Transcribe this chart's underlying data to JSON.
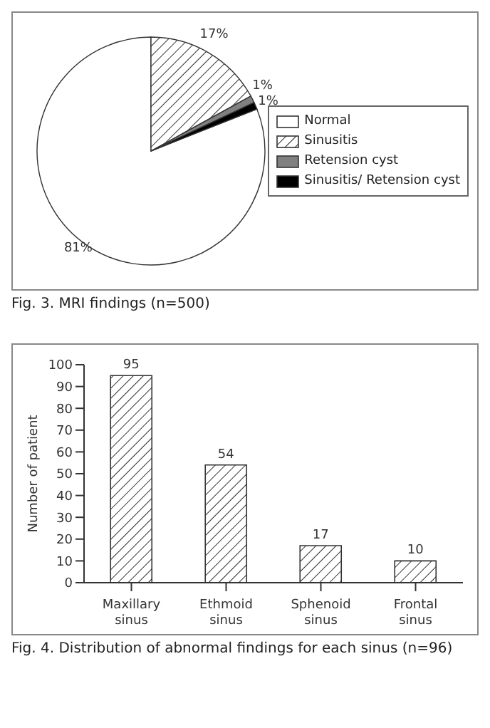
{
  "chart_data": [
    {
      "type": "pie",
      "title": "Fig. 3. MRI findings (n=500)",
      "categories": [
        "Normal",
        "Sinusitis",
        "Retension cyst",
        "Sinusitis/ Retension cyst"
      ],
      "values": [
        81,
        17,
        1,
        1
      ],
      "value_labels": [
        "81%",
        "17%",
        "1%",
        "1%"
      ],
      "colors": [
        "#ffffff",
        "#333333",
        "#808080",
        "#000000"
      ],
      "legend": "right"
    },
    {
      "type": "bar",
      "title": "Fig. 4. Distribution of abnormal findings for each sinus (n=96)",
      "categories": [
        "Maxillary sinus",
        "Ethmoid sinus",
        "Sphenoid sinus",
        "Frontal sinus"
      ],
      "values": [
        95,
        54,
        17,
        10
      ],
      "color": "#333333",
      "ylabel": "Number of patient",
      "ylim": [
        0,
        100
      ],
      "yticks": [
        0,
        10,
        20,
        30,
        40,
        50,
        60,
        70,
        80,
        90,
        100
      ],
      "data_labels": true
    }
  ]
}
